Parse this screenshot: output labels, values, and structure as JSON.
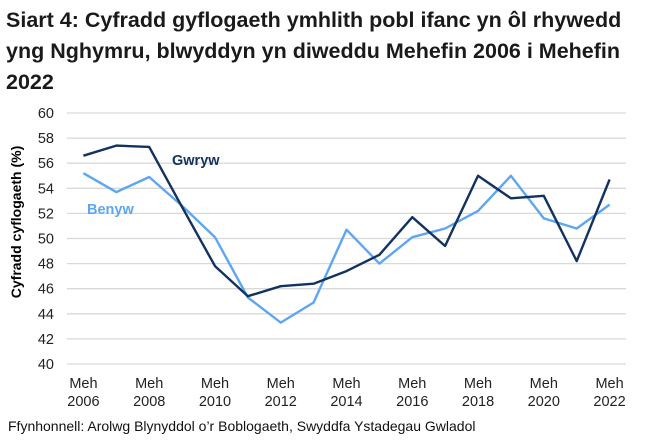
{
  "title": "Siart 4: Cyfradd gyflogaeth ymhlith pobl ifanc yn ôl rhywedd yng Nghymru, blwyddyn yn diweddu Mehefin 2006 i Mehefin 2022",
  "source": "Ffynhonnell: Arolwg Blynyddol o’r Boblogaeth, Swyddfa Ystadegau Gwladol",
  "colors": {
    "gwryw": "#12325f",
    "benyw": "#5ea6f2",
    "grid": "#d9d9d9"
  },
  "chart_data": {
    "type": "line",
    "title": "Siart 4: Cyfradd gyflogaeth ymhlith pobl ifanc yn ôl rhywedd yng Nghymru, blwyddyn yn diweddu Mehefin 2006 i Mehefin 2022",
    "xlabel": "",
    "ylabel": "Cyfradd cyflogaeth (%)",
    "ylim": [
      40,
      60
    ],
    "yticks": [
      40,
      42,
      44,
      46,
      48,
      50,
      52,
      54,
      56,
      58,
      60
    ],
    "grid": true,
    "legend": "inline labels",
    "x": [
      "Meh 2006",
      "Meh 2007",
      "Meh 2008",
      "Meh 2009",
      "Meh 2010",
      "Meh 2011",
      "Meh 2012",
      "Meh 2013",
      "Meh 2014",
      "Meh 2015",
      "Meh 2016",
      "Meh 2017",
      "Meh 2018",
      "Meh 2019",
      "Meh 2020",
      "Meh 2021",
      "Meh 2022"
    ],
    "xtick_labels": [
      {
        "line1": "Meh",
        "line2": "2006"
      },
      {
        "line1": "Meh",
        "line2": "2008"
      },
      {
        "line1": "Meh",
        "line2": "2010"
      },
      {
        "line1": "Meh",
        "line2": "2012"
      },
      {
        "line1": "Meh",
        "line2": "2014"
      },
      {
        "line1": "Meh",
        "line2": "2016"
      },
      {
        "line1": "Meh",
        "line2": "2018"
      },
      {
        "line1": "Meh",
        "line2": "2020"
      },
      {
        "line1": "Meh",
        "line2": "2022"
      }
    ],
    "series": [
      {
        "name": "Gwryw",
        "values": [
          56.6,
          57.4,
          57.3,
          52.5,
          47.8,
          45.4,
          46.2,
          46.4,
          47.4,
          48.7,
          51.7,
          49.4,
          55.0,
          53.2,
          53.4,
          48.2,
          54.7
        ]
      },
      {
        "name": "Benyw",
        "values": [
          55.2,
          53.7,
          54.9,
          52.6,
          50.1,
          45.3,
          43.3,
          44.9,
          50.7,
          48.0,
          50.1,
          50.8,
          52.2,
          55.0,
          51.6,
          50.8,
          52.7
        ]
      }
    ]
  }
}
